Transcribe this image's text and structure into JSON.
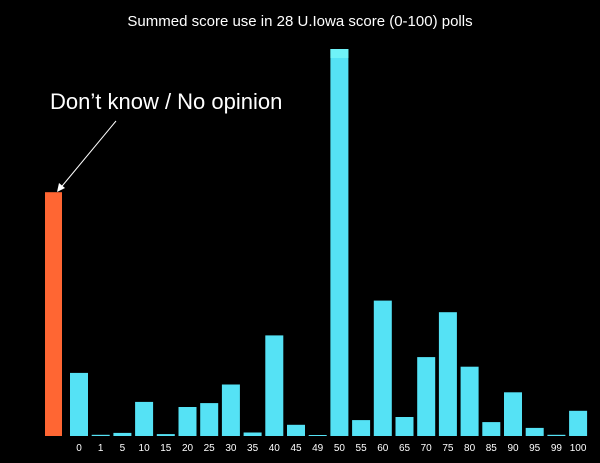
{
  "chart_data": {
    "type": "bar",
    "title": "Summed score use in 28 U.Iowa score (0-100) polls",
    "annotation": "Don’t know / No opinion",
    "xlabel": "",
    "ylabel": "",
    "ylim": [
      0,
      100
    ],
    "grid": false,
    "legend": "none",
    "colors": {
      "background": "#000000",
      "score_bar": "#55E2F5",
      "score_bar_cap": "#6FF2F8",
      "dk_bar": "#FF6633",
      "text": "#ffffff"
    },
    "dont_know_value": 63,
    "categories": [
      "0",
      "1",
      "5",
      "10",
      "15",
      "20",
      "25",
      "30",
      "35",
      "40",
      "45",
      "49",
      "50",
      "55",
      "60",
      "65",
      "70",
      "75",
      "80",
      "85",
      "90",
      "95",
      "99",
      "100"
    ],
    "values": [
      16.3,
      0.3,
      0.8,
      8.8,
      0.5,
      7.5,
      8.5,
      13.3,
      0.9,
      26,
      2.9,
      0.2,
      100,
      4.1,
      35,
      4.9,
      20.4,
      32,
      17.9,
      3.6,
      11.3,
      2.1,
      0.3,
      6.5
    ]
  }
}
